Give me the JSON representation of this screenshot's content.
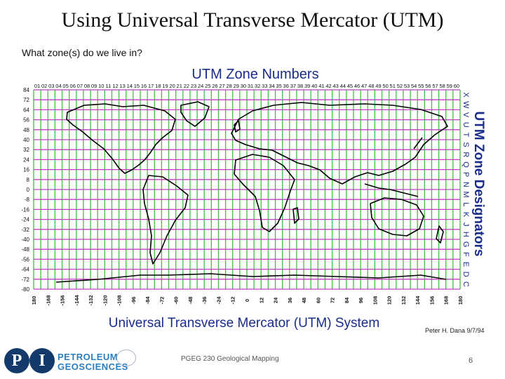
{
  "slide": {
    "title": "Using Universal Transverse Mercator (UTM)",
    "question": "What zone(s) do we live in?",
    "footer_course": "PGEG 230 Geological Mapping",
    "page_number": "6"
  },
  "map": {
    "top_title": "UTM Zone Numbers",
    "side_title": "UTM Zone Designators",
    "bottom_title": "Universal Transverse Mercator (UTM) System",
    "credit": "Peter H. Dana 9/7/94",
    "zone_numbers": [
      "01",
      "02",
      "03",
      "04",
      "05",
      "06",
      "07",
      "08",
      "09",
      "10",
      "11",
      "12",
      "13",
      "14",
      "15",
      "16",
      "17",
      "18",
      "19",
      "20",
      "21",
      "22",
      "23",
      "24",
      "25",
      "26",
      "27",
      "28",
      "29",
      "30",
      "31",
      "32",
      "33",
      "34",
      "35",
      "36",
      "37",
      "38",
      "39",
      "40",
      "41",
      "42",
      "43",
      "44",
      "45",
      "46",
      "47",
      "48",
      "49",
      "50",
      "51",
      "52",
      "53",
      "54",
      "55",
      "56",
      "57",
      "58",
      "59",
      "60"
    ],
    "latitude_labels": [
      "84",
      "72",
      "64",
      "56",
      "48",
      "40",
      "32",
      "24",
      "16",
      "8",
      "0",
      "-8",
      "-16",
      "-24",
      "-32",
      "-40",
      "-48",
      "-56",
      "-64",
      "-72",
      "-80"
    ],
    "zone_designators": [
      "X",
      "W",
      "V",
      "U",
      "T",
      "S",
      "R",
      "Q",
      "P",
      "N",
      "M",
      "L",
      "K",
      "J",
      "H",
      "G",
      "F",
      "E",
      "D",
      "C"
    ],
    "longitude_labels": [
      "180",
      "-168",
      "-156",
      "-144",
      "-132",
      "-120",
      "-108",
      "-96",
      "-84",
      "-72",
      "-60",
      "-48",
      "-36",
      "-24",
      "-12",
      "0",
      "12",
      "24",
      "36",
      "48",
      "60",
      "72",
      "84",
      "96",
      "108",
      "120",
      "132",
      "144",
      "156",
      "168",
      "180"
    ],
    "colors": {
      "zone_lines": "#3fbf3f",
      "band_lines": "#c040c0",
      "coast": "#000000"
    }
  },
  "logo": {
    "letters": [
      "P",
      "I"
    ],
    "line1": "PETROLEUM",
    "line2": "GEOSCIENCES"
  }
}
